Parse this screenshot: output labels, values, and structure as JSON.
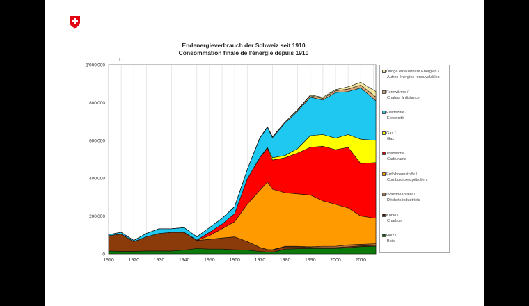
{
  "logo": {
    "name": "swiss-federal-cross",
    "colors": {
      "shield": "#e30613",
      "cross": "#ffffff"
    }
  },
  "chart_data": {
    "type": "area",
    "stacked": true,
    "title": "Endenergieverbrauch der Schweiz seit 1910",
    "subtitle": "Consommation finale de l'énergie depuis 1910",
    "ylabel": "TJ",
    "xlabel": "",
    "xlim": [
      1910,
      2016
    ],
    "ylim": [
      0,
      1000000
    ],
    "grid": "vertical",
    "legend": "right",
    "x_ticks": [
      "1910",
      "1920",
      "1930",
      "1940",
      "1950",
      "1960",
      "1970",
      "1980",
      "1990",
      "2000",
      "2010"
    ],
    "y_ticks": [
      "0",
      "200'000",
      "400'000",
      "600'000",
      "800'000",
      "1'000'000"
    ],
    "x": [
      1910,
      1915,
      1920,
      1925,
      1930,
      1935,
      1940,
      1945,
      1950,
      1955,
      1960,
      1965,
      1970,
      1973,
      1975,
      1980,
      1985,
      1990,
      1995,
      2000,
      2005,
      2010,
      2016
    ],
    "series": [
      {
        "name": "Holz / Bois",
        "color": "#0b7a0b",
        "values": [
          15000,
          13000,
          13000,
          15000,
          15000,
          15000,
          20000,
          28000,
          25000,
          25000,
          22000,
          20000,
          12000,
          10000,
          8000,
          25000,
          27000,
          28000,
          28000,
          28000,
          32000,
          38000,
          40000
        ]
      },
      {
        "name": "Kohle / Charbon",
        "color": "#8b3a0a",
        "values": [
          81000,
          92000,
          52000,
          75000,
          93000,
          99000,
          94000,
          43000,
          52000,
          59000,
          68000,
          45000,
          22000,
          13000,
          12000,
          12000,
          10000,
          6000,
          5000,
          5000,
          5000,
          4000,
          5000
        ]
      },
      {
        "name": "Industrieabfälle / Déchets industriels",
        "color": "#b8703c",
        "values": [
          0,
          0,
          0,
          0,
          0,
          0,
          0,
          0,
          0,
          0,
          0,
          0,
          0,
          0,
          2000,
          3000,
          3000,
          3000,
          7000,
          7000,
          10000,
          8000,
          8000
        ]
      },
      {
        "name": "Erdölbrennstoffe / Combustibles pétroliers",
        "color": "#ff9a00",
        "values": [
          0,
          0,
          0,
          0,
          0,
          0,
          0,
          0,
          19000,
          49000,
          80000,
          197000,
          302000,
          357000,
          320000,
          283000,
          277000,
          274000,
          240000,
          222000,
          196000,
          150000,
          135000
        ]
      },
      {
        "name": "Treibstoffe / Carburants",
        "color": "#ff0000",
        "values": [
          0,
          0,
          0,
          0,
          0,
          0,
          0,
          2000,
          18000,
          24000,
          43000,
          135000,
          172000,
          178000,
          154000,
          185000,
          216000,
          252000,
          289000,
          289000,
          320000,
          277000,
          295000
        ]
      },
      {
        "name": "Gas / Gaz",
        "color": "#ffff00",
        "values": [
          0,
          0,
          0,
          0,
          0,
          0,
          0,
          0,
          0,
          0,
          0,
          0,
          2000,
          5000,
          12000,
          12000,
          24000,
          62000,
          62000,
          61000,
          68000,
          129000,
          117000
        ]
      },
      {
        "name": "Elektrizität / Electricité",
        "color": "#1ec8f0",
        "values": [
          6000,
          9000,
          6000,
          18000,
          25000,
          19000,
          25000,
          17000,
          25000,
          31000,
          37000,
          49000,
          102000,
          106000,
          106000,
          172000,
          197000,
          203000,
          182000,
          240000,
          227000,
          271000,
          209000
        ]
      },
      {
        "name": "Fernwärme / Chaleur à distance",
        "color": "#d9a878",
        "values": [
          0,
          0,
          0,
          0,
          0,
          0,
          0,
          0,
          0,
          0,
          0,
          0,
          2000,
          3000,
          5000,
          5000,
          7000,
          8000,
          9000,
          10000,
          13000,
          15000,
          20000
        ]
      },
      {
        "name": "Übrige erneuerbare Energien / Autres énergies renouvelables",
        "color": "#f3e6a0",
        "values": [
          0,
          0,
          0,
          0,
          0,
          0,
          0,
          0,
          0,
          0,
          0,
          0,
          0,
          0,
          0,
          0,
          2000,
          4000,
          6000,
          6000,
          12000,
          15000,
          29000
        ]
      }
    ]
  },
  "legend": [
    {
      "l1": "Übrige erneuerbare Energien /",
      "l2": "Autres énergies renouvelables",
      "color": "#f3e6a0"
    },
    {
      "l1": "Fernwärme /",
      "l2": "Chaleur à distance",
      "color": "#d9a878"
    },
    {
      "l1": "Elektrizität /",
      "l2": "Electricité",
      "color": "#1ec8f0"
    },
    {
      "l1": "Gas /",
      "l2": "Gaz",
      "color": "#ffff00"
    },
    {
      "l1": "Treibstoffe /",
      "l2": "Carburants",
      "color": "#c00000"
    },
    {
      "l1": "Erdölbrennstoffe /",
      "l2": "Combustibles pétroliers",
      "color": "#ff9a00"
    },
    {
      "l1": "Industrieabfälle /",
      "l2": "Déchets industriels",
      "color": "#b8703c"
    },
    {
      "l1": "Kohle /",
      "l2": "Charbon",
      "color": "#3a1a0a"
    },
    {
      "l1": "Holz /",
      "l2": "Bois",
      "color": "#0b5a0b"
    }
  ]
}
